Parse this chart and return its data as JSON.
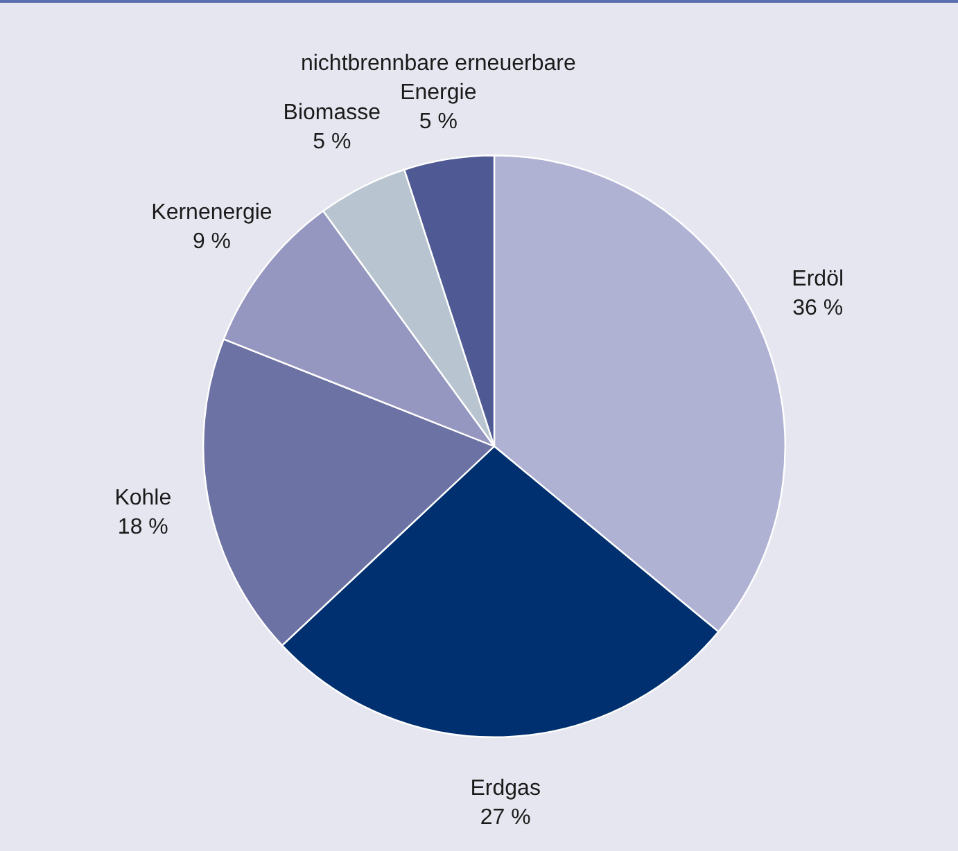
{
  "chart_data": {
    "type": "pie",
    "categories": [
      "Erdöl",
      "Erdgas",
      "Kohle",
      "Kernenergie",
      "Biomasse",
      "nichtbrennbare erneuerbare Energie"
    ],
    "values": [
      36,
      27,
      18,
      9,
      5,
      5
    ],
    "value_labels": [
      "36 %",
      "27 %",
      "18 %",
      "9 %",
      "5 %",
      "5 %"
    ],
    "colors": [
      "#b0b2d4",
      "#00306f",
      "#6d72a4",
      "#9697c0",
      "#b8c4d0",
      "#4f5a94"
    ],
    "legend": false
  }
}
